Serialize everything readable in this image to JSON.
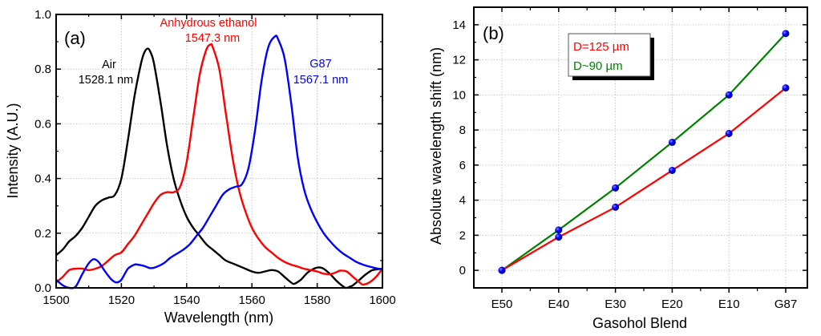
{
  "chart_data": [
    {
      "type": "line",
      "panel_label": "(a)",
      "title": "",
      "xlabel": "Wavelength (nm)",
      "ylabel": "Intensity (A.U.)",
      "xlim": [
        1500,
        1600
      ],
      "ylim": [
        0.0,
        1.0
      ],
      "xticks": [
        1500,
        1520,
        1540,
        1560,
        1580,
        1600
      ],
      "xtick_labels": [
        "1500",
        "1520",
        "1540",
        "1560",
        "1580",
        "1600"
      ],
      "yticks": [
        0.0,
        0.2,
        0.4,
        0.6,
        0.8,
        1.0
      ],
      "ytick_labels": [
        "0.0",
        "0.2",
        "0.4",
        "0.6",
        "0.8",
        "1.0"
      ],
      "grid": true,
      "series": [
        {
          "name": "Air",
          "color": "#000000",
          "annotation": [
            "Air",
            "1528.1 nm"
          ],
          "peak_wavelength": 1528.1,
          "x": [
            1500,
            1502,
            1504,
            1506,
            1508,
            1510,
            1512,
            1514,
            1516,
            1518,
            1520,
            1522,
            1524,
            1526,
            1527,
            1528.1,
            1529,
            1530,
            1532,
            1534,
            1536,
            1538,
            1540,
            1542,
            1544,
            1546,
            1548,
            1550,
            1552,
            1554,
            1556,
            1558,
            1560,
            1562,
            1564,
            1566,
            1568,
            1570,
            1572,
            1573,
            1575,
            1577,
            1579,
            1580.5,
            1582,
            1584,
            1586,
            1588,
            1589,
            1591,
            1593,
            1595,
            1597,
            1600
          ],
          "y": [
            0.12,
            0.14,
            0.17,
            0.19,
            0.22,
            0.26,
            0.3,
            0.32,
            0.33,
            0.34,
            0.4,
            0.54,
            0.7,
            0.82,
            0.86,
            0.875,
            0.86,
            0.82,
            0.68,
            0.52,
            0.4,
            0.32,
            0.26,
            0.22,
            0.19,
            0.16,
            0.14,
            0.12,
            0.1,
            0.09,
            0.08,
            0.07,
            0.06,
            0.055,
            0.06,
            0.065,
            0.06,
            0.04,
            0.02,
            0.015,
            0.03,
            0.055,
            0.07,
            0.075,
            0.07,
            0.05,
            0.025,
            0.005,
            0.0,
            0.01,
            0.03,
            0.05,
            0.065,
            0.07
          ]
        },
        {
          "name": "Anhydrous ethanol",
          "color": "#ff0000",
          "annotation": [
            "Anhydrous ethanol",
            "1547.3 nm"
          ],
          "peak_wavelength": 1547.3,
          "x": [
            1500,
            1502,
            1504,
            1506,
            1508,
            1510,
            1512,
            1514,
            1516,
            1518,
            1520,
            1522,
            1524,
            1526,
            1528,
            1530,
            1532,
            1534,
            1536,
            1538,
            1540,
            1542,
            1544,
            1546,
            1547.3,
            1548,
            1550,
            1552,
            1554,
            1556,
            1558,
            1560,
            1562,
            1564,
            1566,
            1568,
            1570,
            1572,
            1574,
            1576,
            1578,
            1580,
            1582,
            1584,
            1586,
            1587,
            1589,
            1591,
            1593,
            1594,
            1596,
            1598,
            1600
          ],
          "y": [
            0.02,
            0.04,
            0.065,
            0.07,
            0.07,
            0.065,
            0.07,
            0.08,
            0.1,
            0.12,
            0.13,
            0.16,
            0.19,
            0.23,
            0.27,
            0.31,
            0.34,
            0.35,
            0.35,
            0.37,
            0.46,
            0.62,
            0.78,
            0.87,
            0.89,
            0.88,
            0.8,
            0.64,
            0.48,
            0.36,
            0.28,
            0.22,
            0.18,
            0.15,
            0.13,
            0.11,
            0.095,
            0.085,
            0.078,
            0.07,
            0.065,
            0.06,
            0.052,
            0.05,
            0.058,
            0.063,
            0.06,
            0.04,
            0.02,
            0.012,
            0.02,
            0.04,
            0.07
          ]
        },
        {
          "name": "G87",
          "color": "#0000ff",
          "annotation": [
            "G87",
            "1567.1 nm"
          ],
          "peak_wavelength": 1567.1,
          "x": [
            1500,
            1502,
            1504,
            1506,
            1508,
            1510,
            1511.5,
            1513,
            1515,
            1517,
            1518.5,
            1520,
            1522,
            1524,
            1525,
            1527,
            1529,
            1531,
            1533,
            1535,
            1537,
            1539,
            1541,
            1543,
            1545,
            1547,
            1549,
            1551,
            1553,
            1555,
            1557,
            1559,
            1561,
            1563,
            1565,
            1567.1,
            1568,
            1570,
            1572,
            1574,
            1576,
            1578,
            1580,
            1582,
            1584,
            1586,
            1588,
            1590,
            1592,
            1594,
            1596,
            1598,
            1600
          ],
          "y": [
            0.03,
            0.01,
            0.0,
            0.005,
            0.05,
            0.09,
            0.105,
            0.095,
            0.06,
            0.03,
            0.02,
            0.03,
            0.07,
            0.085,
            0.085,
            0.08,
            0.072,
            0.078,
            0.09,
            0.11,
            0.125,
            0.14,
            0.16,
            0.19,
            0.22,
            0.26,
            0.3,
            0.34,
            0.36,
            0.37,
            0.38,
            0.44,
            0.58,
            0.76,
            0.88,
            0.92,
            0.91,
            0.84,
            0.68,
            0.48,
            0.36,
            0.29,
            0.24,
            0.2,
            0.17,
            0.145,
            0.125,
            0.11,
            0.095,
            0.085,
            0.078,
            0.072,
            0.068
          ]
        }
      ]
    },
    {
      "type": "line",
      "panel_label": "(b)",
      "title": "",
      "xlabel": "Gasohol Blend",
      "ylabel": "Absolute wavelength shift (nm)",
      "categories": [
        "E50",
        "E40",
        "E30",
        "E20",
        "E10",
        "G87"
      ],
      "ylim": [
        -1,
        15
      ],
      "yticks": [
        0,
        2,
        4,
        6,
        8,
        10,
        12,
        14
      ],
      "ytick_labels": [
        "0",
        "2",
        "4",
        "6",
        "8",
        "10",
        "12",
        "14"
      ],
      "grid": true,
      "legend_position": "top-left",
      "marker_color": "#0000ff",
      "series": [
        {
          "name": "D=125 µm",
          "color": "#ff0000",
          "values": [
            0.0,
            1.9,
            3.6,
            5.7,
            7.8,
            10.4
          ]
        },
        {
          "name": "D~90 µm",
          "color": "#008000",
          "values": [
            0.0,
            2.3,
            4.7,
            7.3,
            10.0,
            13.5
          ]
        }
      ]
    }
  ]
}
